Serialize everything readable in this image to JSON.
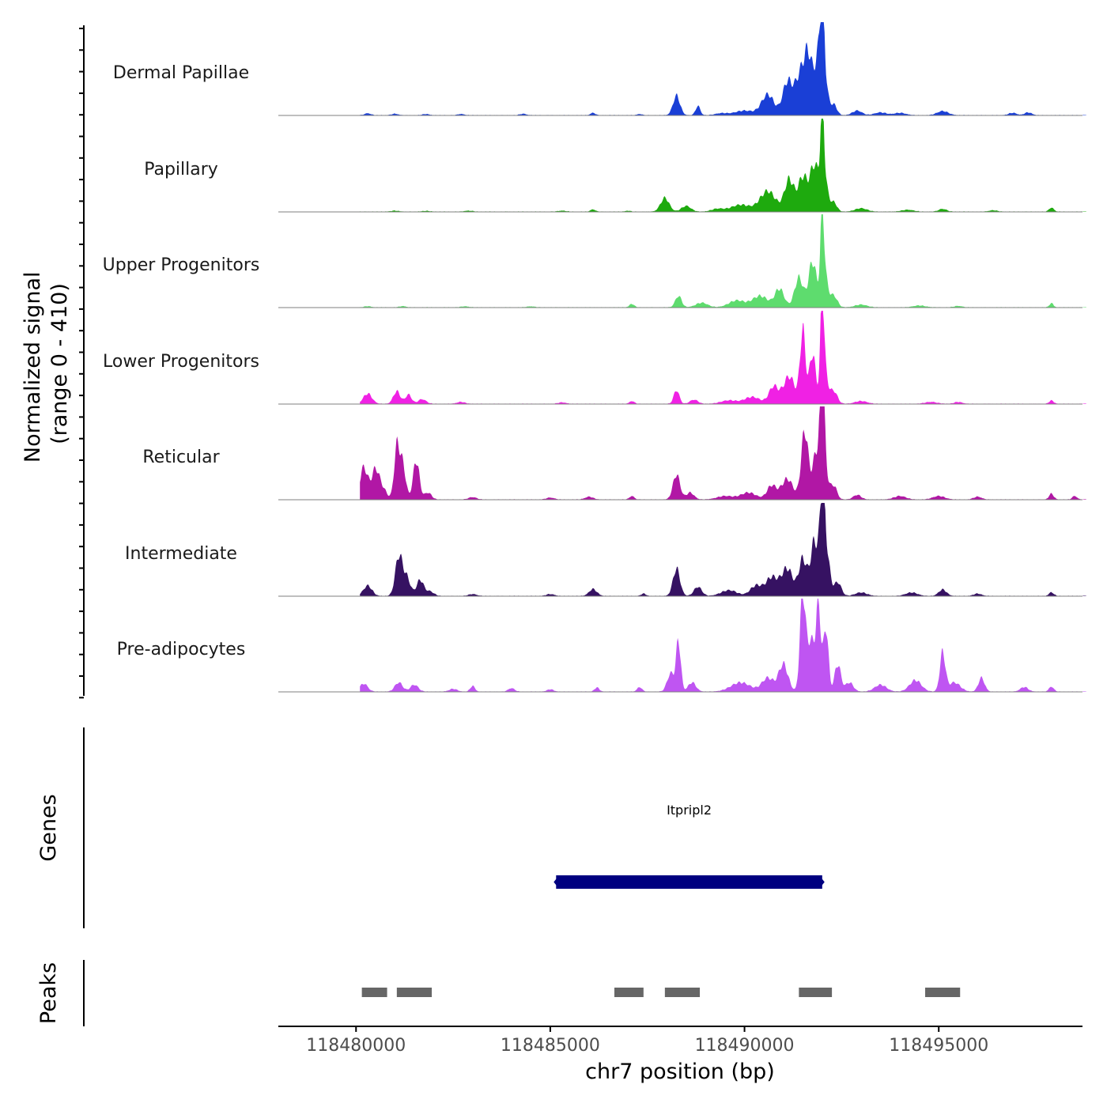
{
  "chart_data": {
    "type": "area",
    "title": "",
    "ylabel_line1": "Normalized signal",
    "ylabel_line2": "(range 0 - 410)",
    "ylim": [
      0,
      410
    ],
    "xlabel": "chr7 position (bp)",
    "xlim": [
      118478000,
      118498700
    ],
    "x_ticks": [
      118480000,
      118485000,
      118490000,
      118495000
    ],
    "x_tick_labels": [
      "118480000",
      "118485000",
      "118490000",
      "118495000"
    ],
    "genes_label": "Genes",
    "peaks_label": "Peaks",
    "gene": {
      "name": "Itpripl2",
      "start": 118485150,
      "end": 118492000,
      "strand": "-",
      "color": "#000080"
    },
    "peaks": [
      {
        "start": 118480150,
        "end": 118480800
      },
      {
        "start": 118481050,
        "end": 118481950
      },
      {
        "start": 118486650,
        "end": 118487400
      },
      {
        "start": 118487950,
        "end": 118488850
      },
      {
        "start": 118491400,
        "end": 118492250
      },
      {
        "start": 118494650,
        "end": 118495550
      }
    ],
    "peak_color": "#666666",
    "series": [
      {
        "name": "Dermal Papillae",
        "color": "#1A3FD6",
        "peaks": [
          [
            118480300,
            8,
            80
          ],
          [
            118481000,
            6,
            80
          ],
          [
            118481800,
            5,
            80
          ],
          [
            118482700,
            5,
            80
          ],
          [
            118484300,
            6,
            80
          ],
          [
            118486100,
            10,
            60
          ],
          [
            118487300,
            5,
            60
          ],
          [
            118488250,
            85,
            90
          ],
          [
            118488800,
            40,
            60
          ],
          [
            118489400,
            8,
            150
          ],
          [
            118490000,
            20,
            250
          ],
          [
            118490600,
            90,
            160
          ],
          [
            118491100,
            140,
            120
          ],
          [
            118491450,
            180,
            150
          ],
          [
            118491650,
            200,
            100
          ],
          [
            118491900,
            230,
            100
          ],
          [
            118492000,
            300,
            50
          ],
          [
            118492050,
            150,
            90
          ],
          [
            118492300,
            45,
            80
          ],
          [
            118492900,
            20,
            120
          ],
          [
            118493500,
            12,
            150
          ],
          [
            118494000,
            10,
            150
          ],
          [
            118495100,
            18,
            140
          ],
          [
            118496900,
            10,
            100
          ],
          [
            118497300,
            12,
            90
          ]
        ]
      },
      {
        "name": "Papillary",
        "color": "#1EAA0E",
        "peaks": [
          [
            118481000,
            4,
            100
          ],
          [
            118481800,
            3,
            100
          ],
          [
            118482900,
            4,
            100
          ],
          [
            118485300,
            4,
            100
          ],
          [
            118486100,
            10,
            60
          ],
          [
            118487000,
            4,
            60
          ],
          [
            118487950,
            60,
            110
          ],
          [
            118488500,
            25,
            120
          ],
          [
            118489300,
            12,
            150
          ],
          [
            118489900,
            30,
            250
          ],
          [
            118490600,
            90,
            200
          ],
          [
            118491150,
            140,
            120
          ],
          [
            118491500,
            150,
            120
          ],
          [
            118491800,
            200,
            110
          ],
          [
            118492000,
            340,
            45
          ],
          [
            118492050,
            150,
            90
          ],
          [
            118492300,
            40,
            80
          ],
          [
            118493000,
            15,
            150
          ],
          [
            118494200,
            8,
            150
          ],
          [
            118495100,
            12,
            100
          ],
          [
            118496400,
            6,
            100
          ],
          [
            118497900,
            18,
            60
          ]
        ]
      },
      {
        "name": "Upper Progenitors",
        "color": "#5EDC6E",
        "peaks": [
          [
            118480300,
            5,
            80
          ],
          [
            118481200,
            5,
            80
          ],
          [
            118482800,
            4,
            100
          ],
          [
            118484500,
            4,
            100
          ],
          [
            118487100,
            15,
            60
          ],
          [
            118488300,
            50,
            80
          ],
          [
            118488900,
            20,
            150
          ],
          [
            118489800,
            30,
            200
          ],
          [
            118490400,
            50,
            200
          ],
          [
            118490900,
            80,
            120
          ],
          [
            118491400,
            130,
            110
          ],
          [
            118491750,
            200,
            100
          ],
          [
            118492000,
            320,
            45
          ],
          [
            118492050,
            150,
            90
          ],
          [
            118492300,
            50,
            90
          ],
          [
            118493000,
            12,
            150
          ],
          [
            118494500,
            8,
            150
          ],
          [
            118495500,
            6,
            100
          ],
          [
            118497900,
            18,
            50
          ]
        ]
      },
      {
        "name": "Lower Progenitors",
        "color": "#F021E4",
        "peaks": [
          [
            118480300,
            45,
            110
          ],
          [
            118481050,
            55,
            90
          ],
          [
            118481350,
            40,
            80
          ],
          [
            118481700,
            20,
            100
          ],
          [
            118482700,
            8,
            100
          ],
          [
            118485300,
            6,
            100
          ],
          [
            118487100,
            12,
            60
          ],
          [
            118488250,
            60,
            70
          ],
          [
            118488700,
            18,
            100
          ],
          [
            118489600,
            15,
            200
          ],
          [
            118490200,
            30,
            200
          ],
          [
            118490750,
            75,
            120
          ],
          [
            118491150,
            120,
            150
          ],
          [
            118491500,
            320,
            70
          ],
          [
            118491750,
            220,
            80
          ],
          [
            118492000,
            380,
            45
          ],
          [
            118492050,
            150,
            90
          ],
          [
            118492300,
            55,
            90
          ],
          [
            118493000,
            12,
            150
          ],
          [
            118494800,
            8,
            150
          ],
          [
            118495500,
            8,
            100
          ],
          [
            118497900,
            14,
            60
          ]
        ]
      },
      {
        "name": "Reticular",
        "color": "#B117A5",
        "peaks": [
          [
            118480200,
            140,
            100
          ],
          [
            118480500,
            130,
            100
          ],
          [
            118480700,
            40,
            100
          ],
          [
            118481050,
            220,
            70
          ],
          [
            118481200,
            150,
            80
          ],
          [
            118481550,
            170,
            80
          ],
          [
            118481850,
            30,
            90
          ],
          [
            118483000,
            10,
            100
          ],
          [
            118485000,
            8,
            100
          ],
          [
            118486000,
            12,
            100
          ],
          [
            118487100,
            15,
            60
          ],
          [
            118488250,
            110,
            90
          ],
          [
            118488600,
            30,
            100
          ],
          [
            118489500,
            15,
            200
          ],
          [
            118490100,
            30,
            200
          ],
          [
            118490700,
            60,
            120
          ],
          [
            118491100,
            90,
            150
          ],
          [
            118491550,
            300,
            90
          ],
          [
            118491850,
            200,
            100
          ],
          [
            118492000,
            420,
            50
          ],
          [
            118492050,
            160,
            90
          ],
          [
            118492300,
            60,
            80
          ],
          [
            118492900,
            20,
            100
          ],
          [
            118494000,
            15,
            150
          ],
          [
            118495000,
            15,
            150
          ],
          [
            118496000,
            12,
            100
          ],
          [
            118497900,
            25,
            60
          ],
          [
            118498500,
            15,
            60
          ]
        ]
      },
      {
        "name": "Intermediate",
        "color": "#361262",
        "peaks": [
          [
            118480300,
            45,
            110
          ],
          [
            118481100,
            170,
            90
          ],
          [
            118481300,
            80,
            100
          ],
          [
            118481650,
            70,
            90
          ],
          [
            118481900,
            20,
            100
          ],
          [
            118483000,
            8,
            100
          ],
          [
            118485000,
            8,
            100
          ],
          [
            118486100,
            30,
            100
          ],
          [
            118487400,
            10,
            60
          ],
          [
            118488250,
            120,
            90
          ],
          [
            118488800,
            40,
            100
          ],
          [
            118489600,
            25,
            200
          ],
          [
            118490300,
            45,
            150
          ],
          [
            118490700,
            80,
            150
          ],
          [
            118491100,
            120,
            150
          ],
          [
            118491500,
            160,
            100
          ],
          [
            118491800,
            240,
            100
          ],
          [
            118492000,
            380,
            60
          ],
          [
            118492100,
            200,
            90
          ],
          [
            118492400,
            60,
            90
          ],
          [
            118493000,
            15,
            150
          ],
          [
            118494300,
            15,
            150
          ],
          [
            118495100,
            28,
            100
          ],
          [
            118496000,
            10,
            100
          ],
          [
            118497900,
            16,
            60
          ]
        ]
      },
      {
        "name": "Pre-adipocytes",
        "color": "#BF55F2",
        "peaks": [
          [
            118480200,
            35,
            100
          ],
          [
            118481100,
            40,
            100
          ],
          [
            118481500,
            30,
            100
          ],
          [
            118482500,
            12,
            100
          ],
          [
            118483000,
            25,
            60
          ],
          [
            118484000,
            15,
            80
          ],
          [
            118485000,
            10,
            80
          ],
          [
            118486200,
            18,
            60
          ],
          [
            118487300,
            20,
            60
          ],
          [
            118488100,
            80,
            90
          ],
          [
            118488300,
            220,
            60
          ],
          [
            118488650,
            40,
            100
          ],
          [
            118489900,
            40,
            250
          ],
          [
            118490600,
            60,
            150
          ],
          [
            118491000,
            120,
            120
          ],
          [
            118491500,
            440,
            70
          ],
          [
            118491700,
            220,
            80
          ],
          [
            118491900,
            380,
            70
          ],
          [
            118492100,
            280,
            60
          ],
          [
            118492400,
            120,
            80
          ],
          [
            118492700,
            40,
            100
          ],
          [
            118493500,
            30,
            150
          ],
          [
            118494400,
            50,
            150
          ],
          [
            118495100,
            170,
            70
          ],
          [
            118495400,
            40,
            150
          ],
          [
            118496100,
            60,
            80
          ],
          [
            118497200,
            20,
            100
          ],
          [
            118497900,
            22,
            60
          ]
        ]
      }
    ]
  }
}
